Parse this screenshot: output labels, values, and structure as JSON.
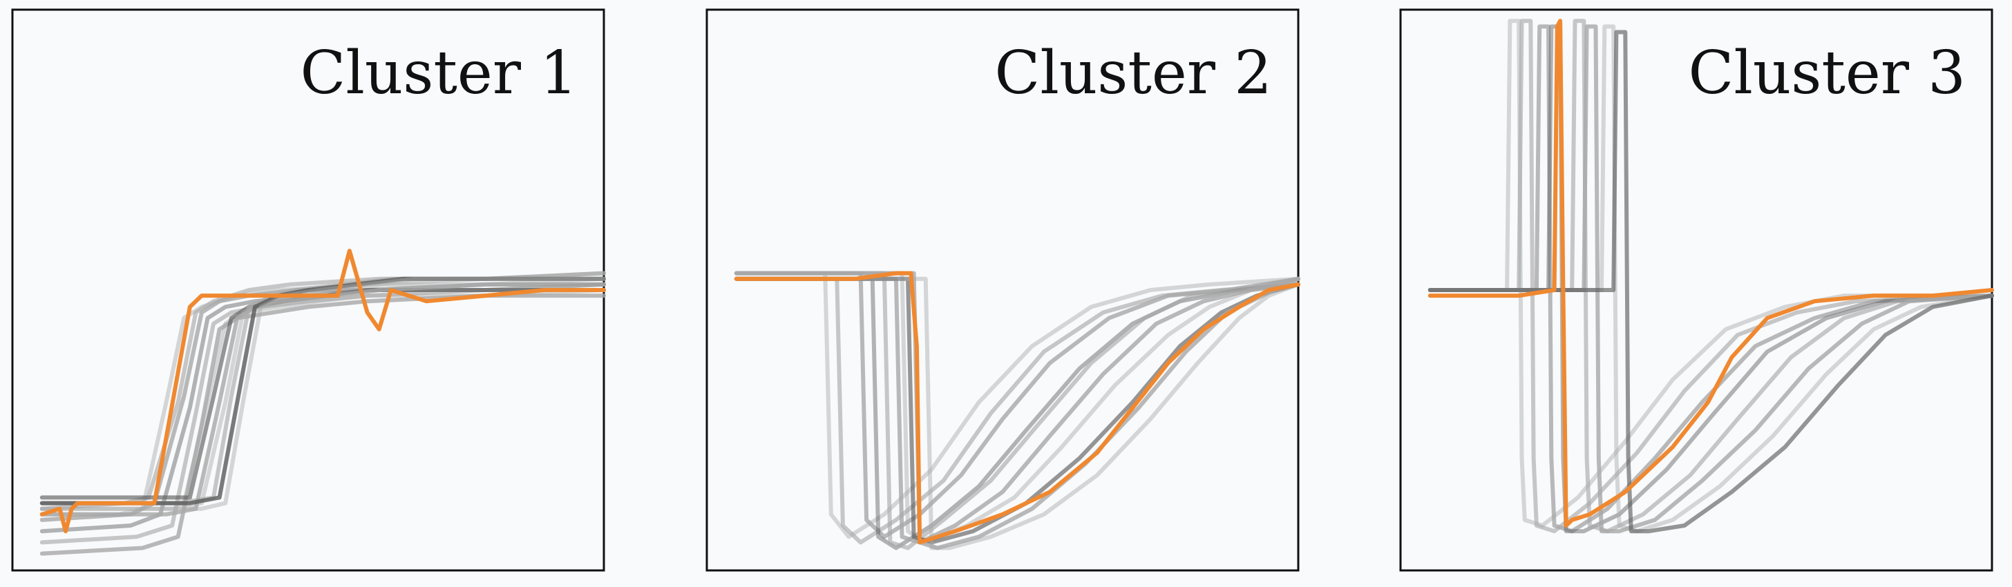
{
  "chart_data": [
    {
      "type": "line",
      "title": "Cluster 1",
      "xlabel": "",
      "ylabel": "",
      "xlim": [
        0,
        1
      ],
      "ylim": [
        0,
        1
      ],
      "grid": false,
      "highlight_color": "#f0882f",
      "background_color": "#a8a8a8",
      "background_series": [
        {
          "x": [
            0.05,
            0.18,
            0.22,
            0.26,
            0.29,
            0.32,
            0.38,
            0.45,
            0.6,
            0.8,
            1.0
          ],
          "values": [
            0.1,
            0.1,
            0.11,
            0.3,
            0.45,
            0.47,
            0.49,
            0.5,
            0.51,
            0.52,
            0.52
          ]
        },
        {
          "x": [
            0.05,
            0.19,
            0.23,
            0.28,
            0.31,
            0.34,
            0.4,
            0.47,
            0.62,
            0.8,
            1.0
          ],
          "values": [
            0.11,
            0.12,
            0.13,
            0.3,
            0.46,
            0.48,
            0.5,
            0.51,
            0.52,
            0.52,
            0.53
          ]
        },
        {
          "x": [
            0.05,
            0.2,
            0.24,
            0.29,
            0.32,
            0.35,
            0.4,
            0.48,
            0.6,
            0.8,
            1.0
          ],
          "values": [
            0.09,
            0.1,
            0.12,
            0.31,
            0.46,
            0.48,
            0.49,
            0.5,
            0.5,
            0.51,
            0.51
          ]
        },
        {
          "x": [
            0.05,
            0.2,
            0.25,
            0.3,
            0.33,
            0.36,
            0.41,
            0.5,
            0.6,
            0.8,
            1.0
          ],
          "values": [
            0.07,
            0.08,
            0.1,
            0.29,
            0.45,
            0.47,
            0.48,
            0.49,
            0.5,
            0.5,
            0.51
          ]
        },
        {
          "x": [
            0.05,
            0.21,
            0.27,
            0.31,
            0.34,
            0.37,
            0.42,
            0.5,
            0.6,
            0.8,
            1.0
          ],
          "values": [
            0.05,
            0.06,
            0.08,
            0.28,
            0.44,
            0.46,
            0.47,
            0.48,
            0.49,
            0.5,
            0.5
          ]
        },
        {
          "x": [
            0.05,
            0.22,
            0.28,
            0.32,
            0.35,
            0.38,
            0.44,
            0.5,
            0.6,
            0.8,
            1.0
          ],
          "values": [
            0.03,
            0.04,
            0.06,
            0.26,
            0.43,
            0.45,
            0.46,
            0.47,
            0.48,
            0.49,
            0.49
          ]
        },
        {
          "x": [
            0.05,
            0.24,
            0.29,
            0.33,
            0.36,
            0.39,
            0.45,
            0.52,
            0.6,
            0.8,
            1.0
          ],
          "values": [
            0.12,
            0.12,
            0.12,
            0.3,
            0.44,
            0.46,
            0.47,
            0.48,
            0.49,
            0.49,
            0.5
          ]
        },
        {
          "x": [
            0.05,
            0.25,
            0.3,
            0.34,
            0.37,
            0.4,
            0.46,
            0.53,
            0.6,
            0.8,
            1.0
          ],
          "values": [
            0.13,
            0.13,
            0.13,
            0.31,
            0.45,
            0.47,
            0.48,
            0.49,
            0.5,
            0.5,
            0.5
          ]
        },
        {
          "x": [
            0.05,
            0.26,
            0.31,
            0.35,
            0.38,
            0.41,
            0.46,
            0.54,
            0.62,
            0.8,
            1.0
          ],
          "values": [
            0.1,
            0.1,
            0.11,
            0.3,
            0.45,
            0.47,
            0.48,
            0.49,
            0.5,
            0.51,
            0.51
          ]
        },
        {
          "x": [
            0.05,
            0.27,
            0.32,
            0.36,
            0.39,
            0.42,
            0.47,
            0.55,
            0.63,
            0.8,
            1.0
          ],
          "values": [
            0.11,
            0.11,
            0.12,
            0.3,
            0.46,
            0.48,
            0.49,
            0.5,
            0.51,
            0.51,
            0.52
          ]
        },
        {
          "x": [
            0.05,
            0.28,
            0.34,
            0.37,
            0.4,
            0.44,
            0.48,
            0.56,
            0.64,
            0.8,
            1.0
          ],
          "values": [
            0.12,
            0.12,
            0.13,
            0.31,
            0.47,
            0.49,
            0.5,
            0.51,
            0.52,
            0.52,
            0.53
          ]
        },
        {
          "x": [
            0.05,
            0.3,
            0.35,
            0.38,
            0.41,
            0.45,
            0.5,
            0.58,
            0.66,
            0.8,
            1.0
          ],
          "values": [
            0.12,
            0.12,
            0.13,
            0.3,
            0.47,
            0.49,
            0.5,
            0.51,
            0.52,
            0.52,
            0.52
          ]
        },
        {
          "x": [
            0.05,
            0.32,
            0.36,
            0.39,
            0.42,
            0.46,
            0.52,
            0.6,
            0.68,
            0.8,
            1.0
          ],
          "values": [
            0.11,
            0.11,
            0.12,
            0.3,
            0.47,
            0.49,
            0.5,
            0.51,
            0.52,
            0.52,
            0.52
          ]
        }
      ],
      "highlight_series": {
        "x": [
          0.05,
          0.08,
          0.09,
          0.1,
          0.11,
          0.18,
          0.24,
          0.3,
          0.32,
          0.4,
          0.55,
          0.57,
          0.6,
          0.62,
          0.64,
          0.67,
          0.7,
          0.8,
          0.9,
          1.0
        ],
        "values": [
          0.1,
          0.11,
          0.07,
          0.11,
          0.12,
          0.12,
          0.12,
          0.47,
          0.49,
          0.49,
          0.49,
          0.57,
          0.46,
          0.43,
          0.5,
          0.49,
          0.48,
          0.49,
          0.5,
          0.5
        ]
      }
    },
    {
      "type": "line",
      "title": "Cluster 2",
      "xlabel": "",
      "ylabel": "",
      "xlim": [
        0,
        1
      ],
      "ylim": [
        0,
        1
      ],
      "grid": false,
      "highlight_color": "#f0882f",
      "background_color": "#a8a8a8",
      "background_series": [
        {
          "x": [
            0.05,
            0.2,
            0.21,
            0.24,
            0.3,
            0.38,
            0.46,
            0.55,
            0.65,
            0.75,
            0.85,
            1.0
          ],
          "values": [
            0.53,
            0.53,
            0.1,
            0.06,
            0.1,
            0.18,
            0.3,
            0.4,
            0.47,
            0.5,
            0.51,
            0.52
          ]
        },
        {
          "x": [
            0.05,
            0.22,
            0.23,
            0.26,
            0.32,
            0.4,
            0.48,
            0.57,
            0.67,
            0.77,
            0.87,
            1.0
          ],
          "values": [
            0.52,
            0.52,
            0.08,
            0.05,
            0.09,
            0.16,
            0.28,
            0.39,
            0.46,
            0.49,
            0.5,
            0.51
          ]
        },
        {
          "x": [
            0.05,
            0.26,
            0.27,
            0.3,
            0.36,
            0.43,
            0.5,
            0.58,
            0.68,
            0.78,
            0.88,
            1.0
          ],
          "values": [
            0.53,
            0.53,
            0.09,
            0.06,
            0.1,
            0.17,
            0.27,
            0.37,
            0.45,
            0.49,
            0.5,
            0.52
          ]
        },
        {
          "x": [
            0.05,
            0.28,
            0.29,
            0.32,
            0.38,
            0.46,
            0.54,
            0.63,
            0.72,
            0.8,
            0.9,
            1.0
          ],
          "values": [
            0.52,
            0.52,
            0.06,
            0.04,
            0.08,
            0.15,
            0.25,
            0.36,
            0.44,
            0.48,
            0.5,
            0.51
          ]
        },
        {
          "x": [
            0.05,
            0.3,
            0.31,
            0.34,
            0.4,
            0.48,
            0.56,
            0.65,
            0.74,
            0.82,
            0.9,
            1.0
          ],
          "values": [
            0.53,
            0.53,
            0.05,
            0.04,
            0.09,
            0.16,
            0.26,
            0.37,
            0.45,
            0.49,
            0.5,
            0.52
          ]
        },
        {
          "x": [
            0.05,
            0.32,
            0.33,
            0.36,
            0.42,
            0.5,
            0.58,
            0.67,
            0.76,
            0.84,
            0.92,
            1.0
          ],
          "values": [
            0.52,
            0.52,
            0.06,
            0.05,
            0.08,
            0.14,
            0.24,
            0.35,
            0.44,
            0.48,
            0.5,
            0.51
          ]
        },
        {
          "x": [
            0.05,
            0.33,
            0.34,
            0.37,
            0.44,
            0.52,
            0.6,
            0.69,
            0.78,
            0.85,
            0.92,
            1.0
          ],
          "values": [
            0.53,
            0.53,
            0.07,
            0.05,
            0.08,
            0.13,
            0.22,
            0.33,
            0.42,
            0.47,
            0.5,
            0.52
          ]
        },
        {
          "x": [
            0.05,
            0.34,
            0.35,
            0.38,
            0.45,
            0.54,
            0.63,
            0.72,
            0.8,
            0.87,
            0.93,
            1.0
          ],
          "values": [
            0.52,
            0.52,
            0.06,
            0.05,
            0.07,
            0.12,
            0.2,
            0.3,
            0.4,
            0.46,
            0.49,
            0.51
          ]
        },
        {
          "x": [
            0.05,
            0.35,
            0.36,
            0.39,
            0.46,
            0.55,
            0.64,
            0.73,
            0.81,
            0.88,
            0.94,
            1.0
          ],
          "values": [
            0.53,
            0.53,
            0.05,
            0.04,
            0.06,
            0.11,
            0.19,
            0.29,
            0.39,
            0.46,
            0.49,
            0.52
          ]
        },
        {
          "x": [
            0.05,
            0.37,
            0.38,
            0.41,
            0.48,
            0.57,
            0.66,
            0.75,
            0.83,
            0.9,
            0.95,
            1.0
          ],
          "values": [
            0.52,
            0.52,
            0.04,
            0.04,
            0.06,
            0.1,
            0.17,
            0.27,
            0.37,
            0.45,
            0.49,
            0.51
          ]
        }
      ],
      "highlight_series": {
        "x": [
          0.05,
          0.15,
          0.25,
          0.32,
          0.345,
          0.355,
          0.36,
          0.42,
          0.5,
          0.58,
          0.66,
          0.72,
          0.78,
          0.84,
          0.9,
          0.95,
          1.0
        ],
        "values": [
          0.52,
          0.52,
          0.52,
          0.53,
          0.53,
          0.4,
          0.05,
          0.07,
          0.1,
          0.14,
          0.21,
          0.29,
          0.37,
          0.43,
          0.47,
          0.5,
          0.51
        ]
      }
    },
    {
      "type": "line",
      "title": "Cluster 3",
      "xlabel": "",
      "ylabel": "",
      "xlim": [
        0,
        1
      ],
      "ylim": [
        0,
        1
      ],
      "grid": false,
      "highlight_color": "#f0882f",
      "background_color": "#a8a8a8",
      "background_series": [
        {
          "x": [
            0.05,
            0.18,
            0.185,
            0.2,
            0.205,
            0.21,
            0.24,
            0.3,
            0.38,
            0.46,
            0.55,
            0.65,
            0.75,
            1.0
          ],
          "values": [
            0.5,
            0.5,
            0.98,
            0.98,
            0.2,
            0.09,
            0.08,
            0.13,
            0.23,
            0.34,
            0.43,
            0.47,
            0.49,
            0.49
          ]
        },
        {
          "x": [
            0.05,
            0.2,
            0.205,
            0.22,
            0.225,
            0.23,
            0.26,
            0.32,
            0.4,
            0.48,
            0.57,
            0.67,
            0.77,
            1.0
          ],
          "values": [
            0.5,
            0.5,
            0.98,
            0.98,
            0.2,
            0.08,
            0.07,
            0.12,
            0.21,
            0.32,
            0.42,
            0.46,
            0.48,
            0.49
          ]
        },
        {
          "x": [
            0.05,
            0.23,
            0.235,
            0.25,
            0.255,
            0.26,
            0.29,
            0.35,
            0.43,
            0.51,
            0.6,
            0.7,
            0.8,
            1.0
          ],
          "values": [
            0.5,
            0.5,
            0.97,
            0.97,
            0.2,
            0.08,
            0.07,
            0.11,
            0.2,
            0.3,
            0.4,
            0.45,
            0.48,
            0.49
          ]
        },
        {
          "x": [
            0.05,
            0.25,
            0.255,
            0.27,
            0.275,
            0.28,
            0.31,
            0.37,
            0.45,
            0.53,
            0.62,
            0.72,
            0.82,
            1.0
          ],
          "values": [
            0.5,
            0.5,
            0.97,
            0.97,
            0.2,
            0.07,
            0.07,
            0.1,
            0.18,
            0.28,
            0.39,
            0.45,
            0.48,
            0.49
          ]
        },
        {
          "x": [
            0.05,
            0.29,
            0.295,
            0.31,
            0.315,
            0.32,
            0.35,
            0.41,
            0.49,
            0.57,
            0.66,
            0.75,
            0.84,
            1.0
          ],
          "values": [
            0.5,
            0.5,
            0.98,
            0.98,
            0.2,
            0.08,
            0.07,
            0.1,
            0.17,
            0.27,
            0.38,
            0.45,
            0.48,
            0.49
          ]
        },
        {
          "x": [
            0.05,
            0.31,
            0.315,
            0.33,
            0.335,
            0.34,
            0.37,
            0.43,
            0.51,
            0.6,
            0.69,
            0.78,
            0.86,
            1.0
          ],
          "values": [
            0.5,
            0.5,
            0.97,
            0.97,
            0.2,
            0.07,
            0.07,
            0.09,
            0.16,
            0.25,
            0.36,
            0.44,
            0.48,
            0.49
          ]
        },
        {
          "x": [
            0.05,
            0.34,
            0.345,
            0.36,
            0.365,
            0.37,
            0.4,
            0.46,
            0.54,
            0.63,
            0.72,
            0.8,
            0.88,
            1.0
          ],
          "values": [
            0.5,
            0.5,
            0.97,
            0.97,
            0.2,
            0.08,
            0.07,
            0.09,
            0.15,
            0.24,
            0.35,
            0.43,
            0.47,
            0.49
          ]
        },
        {
          "x": [
            0.05,
            0.36,
            0.365,
            0.38,
            0.385,
            0.39,
            0.42,
            0.48,
            0.56,
            0.65,
            0.74,
            0.82,
            0.9,
            1.0
          ],
          "values": [
            0.5,
            0.5,
            0.96,
            0.96,
            0.2,
            0.07,
            0.07,
            0.08,
            0.14,
            0.22,
            0.33,
            0.42,
            0.47,
            0.49
          ]
        }
      ],
      "highlight_series": {
        "x": [
          0.05,
          0.12,
          0.2,
          0.26,
          0.265,
          0.27,
          0.275,
          0.28,
          0.29,
          0.32,
          0.38,
          0.46,
          0.52,
          0.56,
          0.62,
          0.7,
          0.8,
          0.9,
          1.0
        ],
        "values": [
          0.49,
          0.49,
          0.49,
          0.5,
          0.97,
          0.98,
          0.5,
          0.08,
          0.09,
          0.1,
          0.14,
          0.22,
          0.3,
          0.38,
          0.45,
          0.48,
          0.49,
          0.49,
          0.5
        ]
      }
    }
  ]
}
